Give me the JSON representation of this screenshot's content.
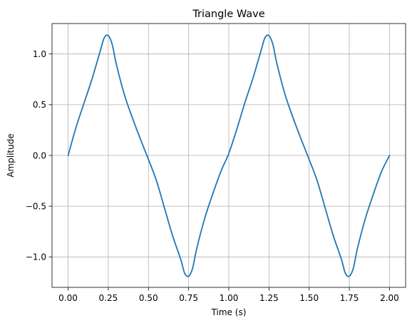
{
  "chart_data": {
    "type": "line",
    "title": "Triangle Wave",
    "xlabel": "Time (s)",
    "ylabel": "Amplitude",
    "xlim": [
      -0.1,
      2.1
    ],
    "ylim": [
      -1.3,
      1.3
    ],
    "x_ticks": [
      0.0,
      0.25,
      0.5,
      0.75,
      1.0,
      1.25,
      1.5,
      1.75,
      2.0
    ],
    "x_tick_labels": [
      "0.00",
      "0.25",
      "0.50",
      "0.75",
      "1.00",
      "1.25",
      "1.50",
      "1.75",
      "2.00"
    ],
    "y_ticks": [
      -1.0,
      -0.5,
      0.0,
      0.5,
      1.0
    ],
    "y_tick_labels": [
      "−1.0",
      "−0.5",
      "0.0",
      "0.5",
      "1.0"
    ],
    "grid": true,
    "series": [
      {
        "color": "#1f77b4",
        "x": [
          0.0,
          0.05,
          0.1,
          0.15,
          0.2,
          0.225,
          0.25,
          0.275,
          0.3,
          0.35,
          0.4,
          0.45,
          0.5,
          0.55,
          0.6,
          0.65,
          0.7,
          0.725,
          0.75,
          0.775,
          0.8,
          0.85,
          0.9,
          0.95,
          1.0,
          1.05,
          1.1,
          1.15,
          1.2,
          1.225,
          1.25,
          1.275,
          1.3,
          1.35,
          1.4,
          1.45,
          1.5,
          1.55,
          1.6,
          1.65,
          1.7,
          1.725,
          1.75,
          1.775,
          1.8,
          1.85,
          1.9,
          1.95,
          2.0
        ],
        "values": [
          0.0,
          0.28,
          0.52,
          0.76,
          1.03,
          1.16,
          1.18,
          1.09,
          0.9,
          0.6,
          0.37,
          0.16,
          -0.04,
          -0.25,
          -0.52,
          -0.79,
          -1.02,
          -1.16,
          -1.19,
          -1.11,
          -0.92,
          -0.62,
          -0.38,
          -0.16,
          0.02,
          0.26,
          0.52,
          0.76,
          1.03,
          1.16,
          1.18,
          1.09,
          0.9,
          0.6,
          0.37,
          0.16,
          -0.04,
          -0.25,
          -0.52,
          -0.79,
          -1.02,
          -1.16,
          -1.19,
          -1.11,
          -0.92,
          -0.62,
          -0.38,
          -0.16,
          0.0
        ]
      }
    ]
  }
}
